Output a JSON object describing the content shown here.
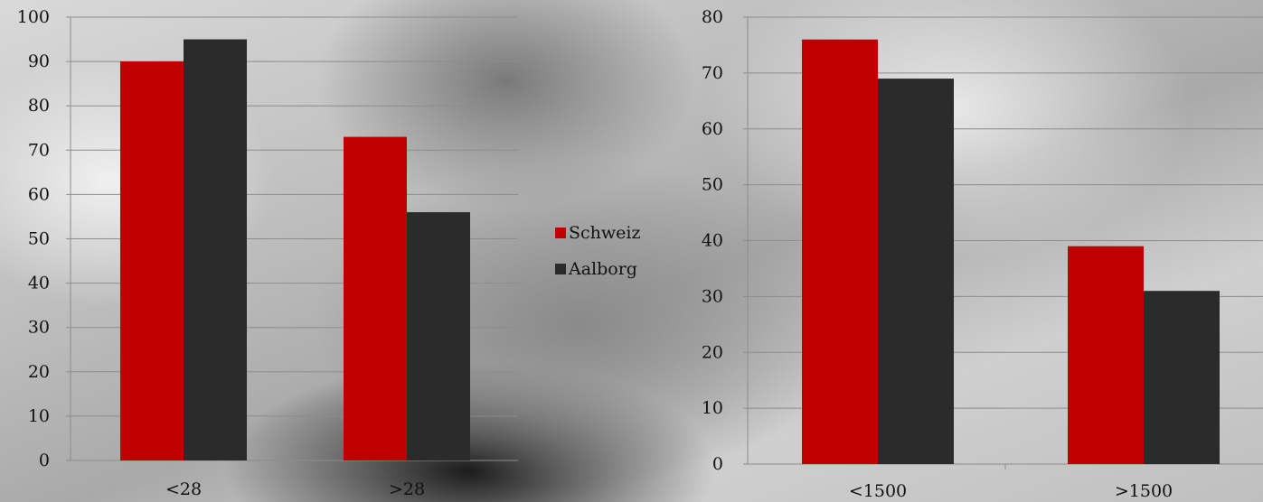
{
  "colors": {
    "Schweiz": "#c00000",
    "Aalborg": "#2b2b2b"
  },
  "legend": {
    "items": [
      {
        "label": "Schweiz",
        "color": "#c00000"
      },
      {
        "label": "Aalborg",
        "color": "#2b2b2b"
      }
    ]
  },
  "chart_data": [
    {
      "type": "bar",
      "categories": [
        "<28",
        ">28"
      ],
      "series": [
        {
          "name": "Schweiz",
          "values": [
            90,
            73
          ]
        },
        {
          "name": "Aalborg",
          "values": [
            95,
            56
          ]
        }
      ],
      "ylim": [
        0,
        100
      ],
      "yticks": [
        0,
        10,
        20,
        30,
        40,
        50,
        60,
        70,
        80,
        90,
        100
      ],
      "grid": true
    },
    {
      "type": "bar",
      "categories": [
        "<1500",
        ">1500"
      ],
      "series": [
        {
          "name": "Schweiz",
          "values": [
            76,
            39
          ]
        },
        {
          "name": "Aalborg",
          "values": [
            69,
            31
          ]
        }
      ],
      "ylim": [
        0,
        80
      ],
      "yticks": [
        0,
        10,
        20,
        30,
        40,
        50,
        60,
        70,
        80
      ],
      "grid": true
    }
  ]
}
